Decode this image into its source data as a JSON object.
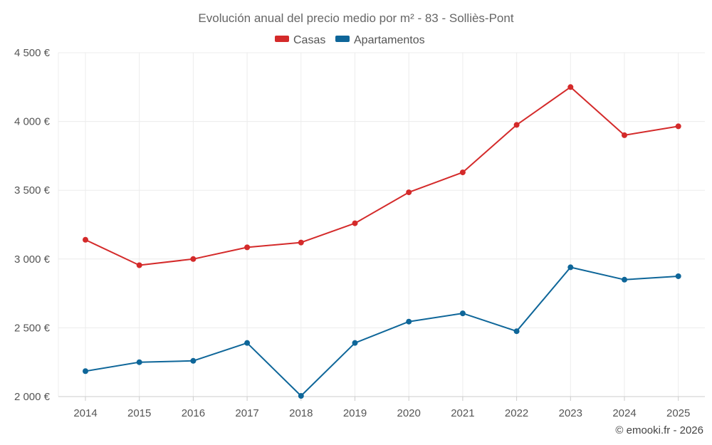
{
  "chart_data": {
    "type": "line",
    "title": "Evolución anual del precio medio por m² - 83 - Solliès-Pont",
    "categories": [
      "2014",
      "2015",
      "2016",
      "2017",
      "2018",
      "2019",
      "2020",
      "2021",
      "2022",
      "2023",
      "2024",
      "2025"
    ],
    "series": [
      {
        "name": "Casas",
        "color": "#d42a2a",
        "values": [
          3140,
          2955,
          3000,
          3085,
          3120,
          3260,
          3485,
          3630,
          3975,
          4250,
          3900,
          3965
        ]
      },
      {
        "name": "Apartamentos",
        "color": "#0e6699",
        "values": [
          2185,
          2250,
          2260,
          2390,
          2005,
          2390,
          2545,
          2605,
          2475,
          2940,
          2850,
          2875
        ]
      }
    ],
    "yticks": [
      2000,
      2500,
      3000,
      3500,
      4000,
      4500
    ],
    "ytick_labels": [
      "2 000 €",
      "2 500 €",
      "3 000 €",
      "3 500 €",
      "4 000 €",
      "4 500 €"
    ],
    "ylim": [
      2000,
      4500
    ],
    "xlabel": "",
    "ylabel": "",
    "grid": true,
    "legend": "top-center"
  },
  "credit": "© emooki.fr - 2026"
}
